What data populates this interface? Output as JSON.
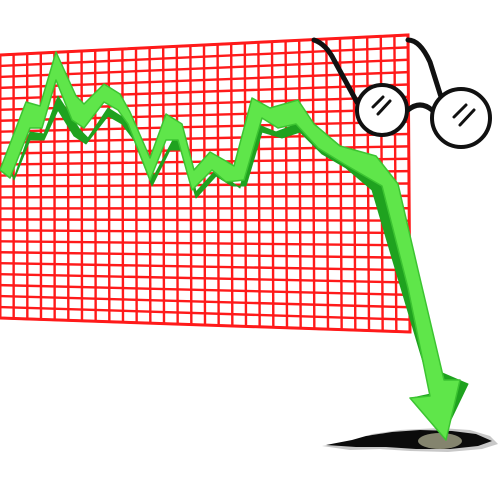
{
  "colors": {
    "background": "#ffffff",
    "grid": "#ff1a1a",
    "arrow_light": "#5fe64a",
    "arrow_dark": "#1fa21f",
    "outline": "#111111",
    "hole": "#0b0b0b",
    "hole_shadow": "#9a9a9a",
    "lens_glint": "#111111"
  },
  "icons": {
    "chart": "falling-stock-chart-illustration",
    "arrow": "downward-trend-arrow-icon",
    "glasses": "round-eyeglasses-icon",
    "hole": "ground-hole-icon"
  }
}
